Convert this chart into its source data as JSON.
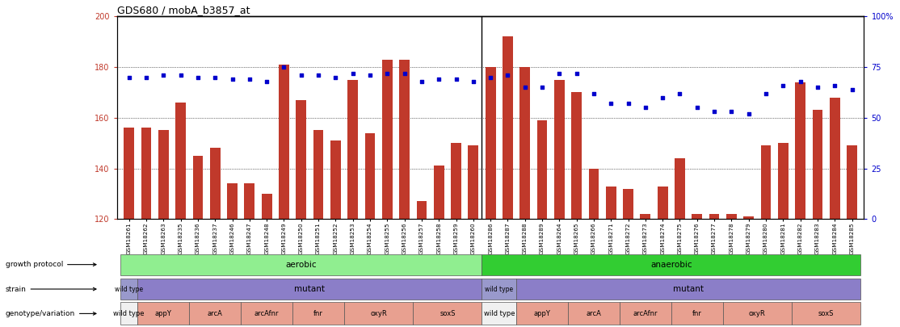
{
  "title": "GDS680 / mobA_b3857_at",
  "samples": [
    "GSM18261",
    "GSM18262",
    "GSM18263",
    "GSM18235",
    "GSM18236",
    "GSM18237",
    "GSM18246",
    "GSM18247",
    "GSM18248",
    "GSM18249",
    "GSM18250",
    "GSM18251",
    "GSM18252",
    "GSM18253",
    "GSM18254",
    "GSM18255",
    "GSM18256",
    "GSM18257",
    "GSM18258",
    "GSM18259",
    "GSM18260",
    "GSM18286",
    "GSM18287",
    "GSM18288",
    "GSM18289",
    "GSM18264",
    "GSM18265",
    "GSM18266",
    "GSM18271",
    "GSM18272",
    "GSM18273",
    "GSM18274",
    "GSM18275",
    "GSM18276",
    "GSM18277",
    "GSM18278",
    "GSM18279",
    "GSM18280",
    "GSM18281",
    "GSM18282",
    "GSM18283",
    "GSM18284",
    "GSM18285"
  ],
  "counts": [
    156,
    156,
    155,
    166,
    145,
    148,
    134,
    134,
    130,
    181,
    167,
    155,
    151,
    175,
    154,
    183,
    183,
    127,
    141,
    150,
    149,
    180,
    192,
    180,
    159,
    175,
    170,
    140,
    133,
    132,
    122,
    133,
    144,
    122,
    122,
    122,
    121,
    149,
    150,
    174,
    163,
    168,
    149
  ],
  "percentiles": [
    70,
    70,
    71,
    71,
    70,
    70,
    69,
    69,
    68,
    75,
    71,
    71,
    70,
    72,
    71,
    72,
    72,
    68,
    69,
    69,
    68,
    70,
    71,
    65,
    65,
    72,
    72,
    62,
    57,
    57,
    55,
    60,
    62,
    55,
    53,
    53,
    52,
    62,
    66,
    68,
    65,
    66,
    64
  ],
  "y_min": 120,
  "y_max": 200,
  "y_ticks": [
    120,
    140,
    160,
    180,
    200
  ],
  "right_y_ticks": [
    0,
    25,
    50,
    75,
    100
  ],
  "bar_color": "#C0392B",
  "dot_color": "#0000CC",
  "aerobic_color": "#90EE90",
  "anaerobic_color": "#32CD32",
  "wt_color": "#9999CC",
  "mutant_color": "#8B7EC8",
  "salmon_color": "#E8A090",
  "wt_bg_color": "#F0F0F0",
  "genotype_groups_aerobic": [
    {
      "label": "wild type",
      "s": 0,
      "e": 1,
      "is_wt": true
    },
    {
      "label": "appY",
      "s": 1,
      "e": 4,
      "is_wt": false
    },
    {
      "label": "arcA",
      "s": 4,
      "e": 7,
      "is_wt": false
    },
    {
      "label": "arcAfnr",
      "s": 7,
      "e": 10,
      "is_wt": false
    },
    {
      "label": "fnr",
      "s": 10,
      "e": 13,
      "is_wt": false
    },
    {
      "label": "oxyR",
      "s": 13,
      "e": 17,
      "is_wt": false
    },
    {
      "label": "soxS",
      "s": 17,
      "e": 21,
      "is_wt": false
    }
  ],
  "genotype_groups_anaerobic": [
    {
      "label": "wild type",
      "s": 21,
      "e": 23,
      "is_wt": true
    },
    {
      "label": "appY",
      "s": 23,
      "e": 26,
      "is_wt": false
    },
    {
      "label": "arcA",
      "s": 26,
      "e": 29,
      "is_wt": false
    },
    {
      "label": "arcAfnr",
      "s": 29,
      "e": 32,
      "is_wt": false
    },
    {
      "label": "fnr",
      "s": 32,
      "e": 35,
      "is_wt": false
    },
    {
      "label": "oxyR",
      "s": 35,
      "e": 39,
      "is_wt": false
    },
    {
      "label": "soxS",
      "s": 39,
      "e": 43,
      "is_wt": false
    }
  ]
}
